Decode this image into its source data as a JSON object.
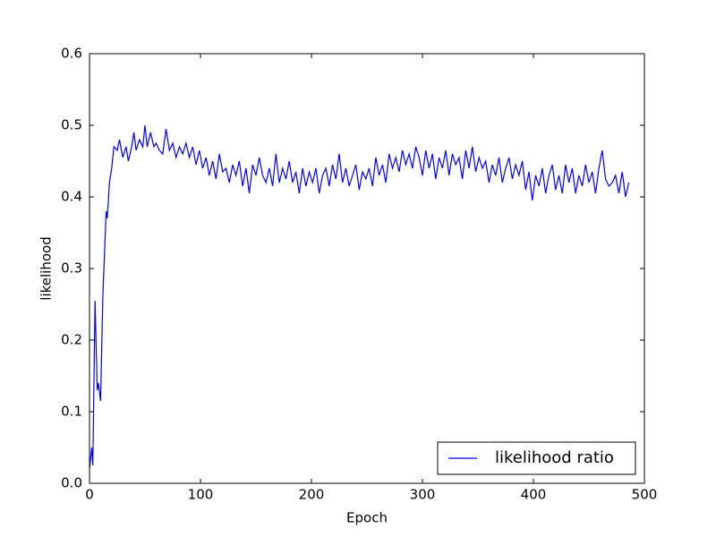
{
  "chart_data": {
    "type": "line",
    "xlabel": "Epoch",
    "ylabel": "likelihood",
    "xlim": [
      0,
      500
    ],
    "ylim": [
      0,
      0.6
    ],
    "xticks": [
      0,
      100,
      200,
      300,
      400,
      500
    ],
    "yticks": [
      {
        "value": 0,
        "label": "0.0"
      },
      0.1,
      0.2,
      0.3,
      0.4,
      0.5,
      0.6
    ],
    "grid": false,
    "legend": "lower right",
    "x": [
      0,
      2,
      3,
      5,
      7,
      8,
      10,
      12,
      15,
      16,
      18,
      20,
      22,
      25,
      27,
      30,
      33,
      35,
      38,
      40,
      42,
      45,
      48,
      50,
      52,
      55,
      58,
      60,
      63,
      66,
      69,
      72,
      75,
      78,
      81,
      84,
      87,
      90,
      93,
      96,
      99,
      102,
      105,
      108,
      111,
      114,
      117,
      120,
      123,
      126,
      129,
      132,
      135,
      138,
      141,
      144,
      147,
      150,
      153,
      156,
      159,
      162,
      165,
      168,
      171,
      174,
      177,
      180,
      183,
      186,
      189,
      192,
      195,
      198,
      201,
      204,
      207,
      210,
      213,
      216,
      219,
      222,
      225,
      228,
      231,
      234,
      237,
      240,
      243,
      246,
      249,
      252,
      255,
      258,
      261,
      264,
      267,
      270,
      273,
      276,
      279,
      282,
      285,
      288,
      291,
      294,
      297,
      300,
      303,
      306,
      309,
      312,
      315,
      318,
      321,
      324,
      327,
      330,
      333,
      336,
      339,
      342,
      345,
      348,
      351,
      354,
      357,
      360,
      363,
      366,
      369,
      372,
      375,
      378,
      381,
      384,
      387,
      390,
      393,
      396,
      399,
      402,
      405,
      408,
      411,
      414,
      417,
      420,
      423,
      426,
      429,
      432,
      435,
      438,
      441,
      444,
      447,
      450,
      453,
      456,
      459,
      462,
      465,
      468,
      471,
      474,
      477,
      480,
      483,
      486
    ],
    "series": [
      {
        "name": "likelihood ratio",
        "color": "#0000ff",
        "values": [
          0.02,
          0.05,
          0.025,
          0.255,
          0.13,
          0.14,
          0.115,
          0.26,
          0.38,
          0.37,
          0.42,
          0.44,
          0.47,
          0.465,
          0.48,
          0.455,
          0.47,
          0.45,
          0.47,
          0.49,
          0.465,
          0.48,
          0.47,
          0.5,
          0.47,
          0.49,
          0.47,
          0.475,
          0.465,
          0.46,
          0.495,
          0.465,
          0.475,
          0.455,
          0.47,
          0.46,
          0.475,
          0.455,
          0.47,
          0.445,
          0.465,
          0.44,
          0.455,
          0.43,
          0.45,
          0.425,
          0.46,
          0.435,
          0.44,
          0.42,
          0.445,
          0.43,
          0.45,
          0.415,
          0.44,
          0.405,
          0.445,
          0.43,
          0.455,
          0.43,
          0.42,
          0.44,
          0.415,
          0.46,
          0.42,
          0.44,
          0.425,
          0.45,
          0.42,
          0.435,
          0.405,
          0.44,
          0.415,
          0.435,
          0.42,
          0.44,
          0.405,
          0.43,
          0.44,
          0.415,
          0.445,
          0.425,
          0.46,
          0.42,
          0.44,
          0.415,
          0.43,
          0.445,
          0.41,
          0.435,
          0.425,
          0.44,
          0.415,
          0.455,
          0.43,
          0.445,
          0.42,
          0.46,
          0.44,
          0.455,
          0.435,
          0.465,
          0.445,
          0.46,
          0.44,
          0.47,
          0.455,
          0.43,
          0.465,
          0.44,
          0.46,
          0.425,
          0.455,
          0.44,
          0.465,
          0.43,
          0.46,
          0.445,
          0.455,
          0.425,
          0.465,
          0.44,
          0.47,
          0.435,
          0.455,
          0.44,
          0.45,
          0.42,
          0.445,
          0.43,
          0.455,
          0.42,
          0.44,
          0.455,
          0.425,
          0.445,
          0.43,
          0.45,
          0.41,
          0.435,
          0.395,
          0.43,
          0.415,
          0.44,
          0.405,
          0.43,
          0.445,
          0.41,
          0.43,
          0.405,
          0.445,
          0.42,
          0.44,
          0.405,
          0.43,
          0.415,
          0.445,
          0.42,
          0.435,
          0.405,
          0.44,
          0.465,
          0.425,
          0.415,
          0.42,
          0.43,
          0.405,
          0.435,
          0.4,
          0.42
        ]
      }
    ]
  }
}
